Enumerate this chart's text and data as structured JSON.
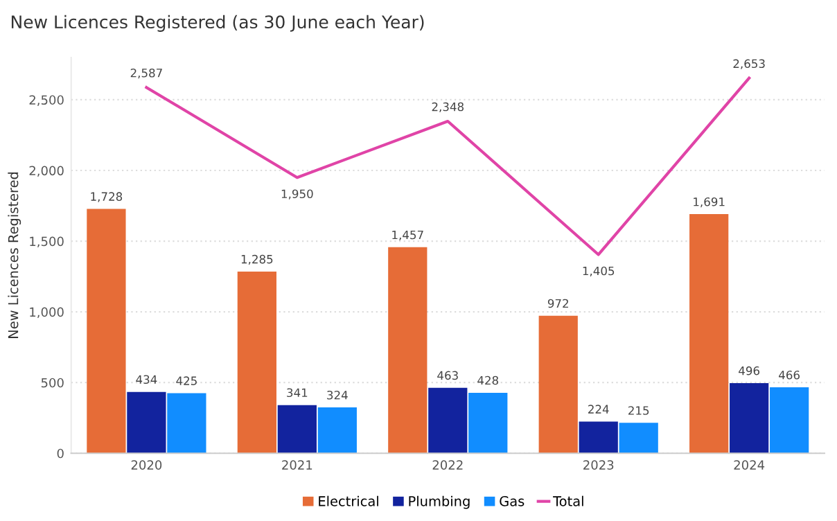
{
  "chart_data": {
    "type": "bar",
    "title": "New Licences Registered (as 30 June each Year)",
    "ylabel": "New Licences Registered",
    "categories": [
      "2020",
      "2021",
      "2022",
      "2023",
      "2024"
    ],
    "series": [
      {
        "name": "Electrical",
        "color": "#e66c37",
        "values": [
          1728,
          1285,
          1457,
          972,
          1691
        ],
        "value_labels": [
          "1,728",
          "1,285",
          "1,457",
          "972",
          "1,691"
        ]
      },
      {
        "name": "Plumbing",
        "color": "#12239e",
        "values": [
          434,
          341,
          463,
          224,
          496
        ],
        "value_labels": [
          "434",
          "341",
          "463",
          "224",
          "496"
        ]
      },
      {
        "name": "Gas",
        "color": "#118dff",
        "values": [
          425,
          324,
          428,
          215,
          466
        ],
        "value_labels": [
          "425",
          "324",
          "428",
          "215",
          "466"
        ]
      },
      {
        "name": "Total",
        "type": "line",
        "color": "#e044a7",
        "values": [
          2587,
          1950,
          2348,
          1405,
          2653
        ],
        "value_labels": [
          "2,587",
          "1,950",
          "2,348",
          "1,405",
          "2,653"
        ]
      }
    ],
    "yticks": [
      0,
      500,
      {
        "value": 1000,
        "label": "1,000"
      },
      {
        "value": 1500,
        "label": "1,500"
      },
      {
        "value": 2000,
        "label": "2,000"
      },
      {
        "value": 2500,
        "label": "2,500"
      }
    ],
    "ylim": [
      0,
      2800
    ],
    "grid": "y",
    "legend": "bottom"
  }
}
